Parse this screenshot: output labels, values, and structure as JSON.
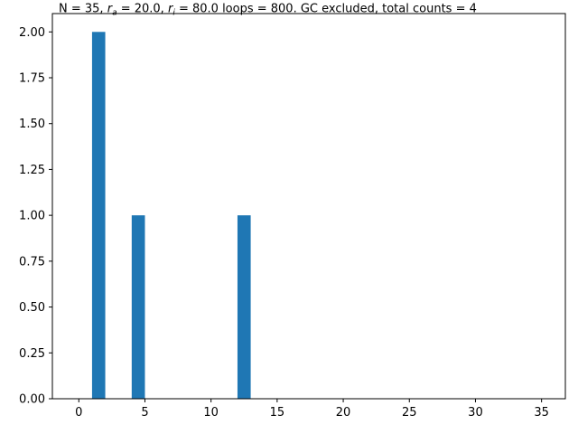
{
  "chart_data": {
    "type": "bar",
    "title": {
      "pre": "N = 35, ",
      "r_a_base": "r",
      "r_a_sub": "a",
      "mid": " = 20.0, ",
      "r_i_base": "r",
      "r_i_sub": "i",
      "post": " = 80.0 loops = 800. GC excluded, total counts = 4"
    },
    "xlim": [
      -2.0,
      36.8
    ],
    "ylim": [
      0,
      2.1
    ],
    "xticks": [
      0,
      5,
      10,
      15,
      20,
      25,
      30,
      35
    ],
    "xtick_labels": [
      "0",
      "5",
      "10",
      "15",
      "20",
      "25",
      "30",
      "35"
    ],
    "yticks": [
      0,
      0.25,
      0.5,
      0.75,
      1.0,
      1.25,
      1.5,
      1.75,
      2.0
    ],
    "ytick_labels": [
      "0.00",
      "0.25",
      "0.50",
      "0.75",
      "1.00",
      "1.25",
      "1.50",
      "1.75",
      "2.00"
    ],
    "bin_width": 1.0,
    "bars": [
      {
        "x": 1.0,
        "value": 2
      },
      {
        "x": 4.0,
        "value": 1
      },
      {
        "x": 12.0,
        "value": 1
      }
    ],
    "bar_color": "#1f77b4",
    "grid": false,
    "legend": "none"
  }
}
